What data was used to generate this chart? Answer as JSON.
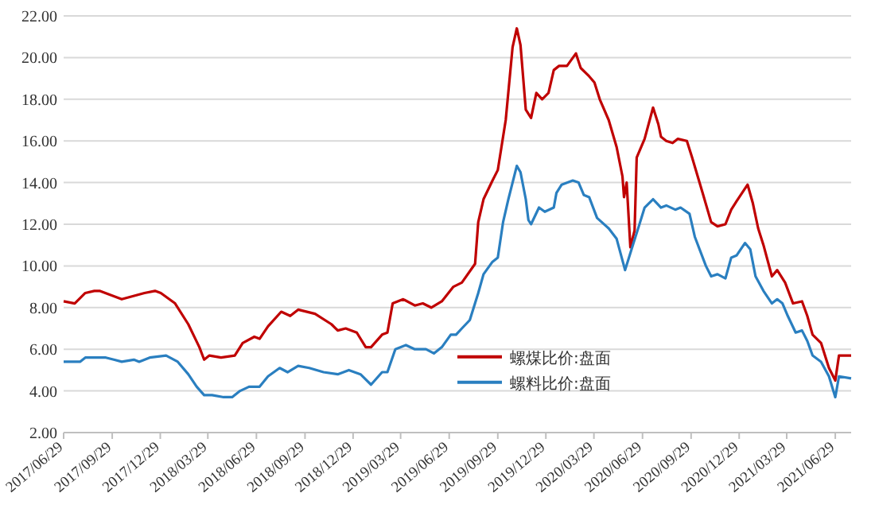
{
  "chart_data": {
    "type": "line",
    "xlim": [
      "2017-06-29",
      "2021-07-29"
    ],
    "ylim": [
      2,
      22
    ],
    "xticks": [
      {
        "value": "2017-06-29",
        "label": "2017/06/29"
      },
      {
        "value": "2017-09-29",
        "label": "2017/09/29"
      },
      {
        "value": "2017-12-29",
        "label": "2017/12/29"
      },
      {
        "value": "2018-03-29",
        "label": "2018/03/29"
      },
      {
        "value": "2018-06-29",
        "label": "2018/06/29"
      },
      {
        "value": "2018-09-29",
        "label": "2018/09/29"
      },
      {
        "value": "2018-12-29",
        "label": "2018/12/29"
      },
      {
        "value": "2019-03-29",
        "label": "2019/03/29"
      },
      {
        "value": "2019-06-29",
        "label": "2019/06/29"
      },
      {
        "value": "2019-09-29",
        "label": "2019/09/29"
      },
      {
        "value": "2019-12-29",
        "label": "2019/12/29"
      },
      {
        "value": "2020-03-29",
        "label": "2020/03/29"
      },
      {
        "value": "2020-06-29",
        "label": "2020/06/29"
      },
      {
        "value": "2020-09-29",
        "label": "2020/09/29"
      },
      {
        "value": "2020-12-29",
        "label": "2020/12/29"
      },
      {
        "value": "2021-03-29",
        "label": "2021/03/29"
      },
      {
        "value": "2021-06-29",
        "label": "2021/06/29"
      }
    ],
    "yticks": [
      {
        "value": 2,
        "label": "2.00"
      },
      {
        "value": 4,
        "label": "4.00"
      },
      {
        "value": 6,
        "label": "6.00"
      },
      {
        "value": 8,
        "label": "8.00"
      },
      {
        "value": 10,
        "label": "10.00"
      },
      {
        "value": 12,
        "label": "12.00"
      },
      {
        "value": 14,
        "label": "14.00"
      },
      {
        "value": 16,
        "label": "16.00"
      },
      {
        "value": 18,
        "label": "18.00"
      },
      {
        "value": 20,
        "label": "20.00"
      },
      {
        "value": 22,
        "label": "22.00"
      }
    ],
    "grid": "y",
    "legend": "bottom",
    "series": [
      {
        "name": "螺煤比价:盘面",
        "color": "#c00000",
        "x": [
          "2017-06-29",
          "2017-07-20",
          "2017-08-09",
          "2017-08-26",
          "2017-09-05",
          "2017-10-17",
          "2017-11-29",
          "2017-12-19",
          "2017-12-30",
          "2018-01-26",
          "2018-02-20",
          "2018-03-13",
          "2018-03-22",
          "2018-04-01",
          "2018-04-23",
          "2018-05-19",
          "2018-06-03",
          "2018-06-25",
          "2018-07-05",
          "2018-07-21",
          "2018-08-15",
          "2018-09-01",
          "2018-09-16",
          "2018-10-18",
          "2018-11-18",
          "2018-11-30",
          "2018-12-15",
          "2019-01-05",
          "2019-01-22",
          "2019-02-01",
          "2019-02-22",
          "2019-03-04",
          "2019-03-14",
          "2019-04-03",
          "2019-04-25",
          "2019-05-10",
          "2019-05-26",
          "2019-06-15",
          "2019-07-07",
          "2019-07-23",
          "2019-08-17",
          "2019-08-23",
          "2019-09-02",
          "2019-09-19",
          "2019-09-29",
          "2019-10-14",
          "2019-10-27",
          "2019-11-04",
          "2019-11-11",
          "2019-11-21",
          "2019-12-01",
          "2019-12-11",
          "2019-12-22",
          "2020-01-03",
          "2020-01-13",
          "2020-01-23",
          "2020-02-07",
          "2020-02-24",
          "2020-03-04",
          "2020-03-20",
          "2020-03-30",
          "2020-04-09",
          "2020-04-26",
          "2020-05-11",
          "2020-05-22",
          "2020-05-25",
          "2020-05-30",
          "2020-06-06",
          "2020-06-14",
          "2020-06-18",
          "2020-07-03",
          "2020-07-19",
          "2020-07-29",
          "2020-08-03",
          "2020-08-13",
          "2020-08-25",
          "2020-09-04",
          "2020-09-21",
          "2020-10-01",
          "2020-10-22",
          "2020-11-06",
          "2020-11-18",
          "2020-12-03",
          "2020-12-14",
          "2020-12-24",
          "2021-01-14",
          "2021-01-24",
          "2021-02-03",
          "2021-02-13",
          "2021-03-01",
          "2021-03-11",
          "2021-03-26",
          "2021-04-10",
          "2021-04-27",
          "2021-05-07",
          "2021-05-17",
          "2021-06-02",
          "2021-06-17",
          "2021-06-29",
          "2021-07-06",
          "2021-07-19",
          "2021-07-29"
        ],
        "values": [
          8.3,
          8.2,
          8.7,
          8.8,
          8.8,
          8.4,
          8.7,
          8.8,
          8.7,
          8.2,
          7.2,
          6.1,
          5.5,
          5.7,
          5.6,
          5.7,
          6.3,
          6.6,
          6.5,
          7.1,
          7.8,
          7.6,
          7.9,
          7.7,
          7.2,
          6.9,
          7.0,
          6.8,
          6.1,
          6.1,
          6.7,
          6.8,
          8.2,
          8.4,
          8.1,
          8.2,
          8.0,
          8.3,
          9.0,
          9.2,
          10.1,
          12.1,
          13.2,
          14.1,
          14.6,
          17.0,
          20.5,
          21.4,
          20.6,
          17.5,
          17.1,
          18.3,
          18.0,
          18.3,
          19.4,
          19.6,
          19.6,
          20.2,
          19.5,
          19.1,
          18.8,
          18.0,
          17.0,
          15.7,
          14.3,
          13.3,
          14.0,
          10.9,
          11.7,
          15.2,
          16.1,
          17.6,
          16.8,
          16.2,
          16.0,
          15.9,
          16.1,
          16.0,
          15.2,
          13.4,
          12.1,
          11.9,
          12.0,
          12.7,
          13.1,
          13.9,
          13.0,
          11.8,
          11.0,
          9.5,
          9.8,
          9.2,
          8.2,
          8.3,
          7.6,
          6.7,
          6.3,
          5.1,
          4.5,
          5.7,
          5.7,
          5.7
        ]
      },
      {
        "name": "螺料比价:盘面",
        "color": "#2a7fc0",
        "x": [
          "2017-06-29",
          "2017-07-30",
          "2017-08-09",
          "2017-08-26",
          "2017-09-17",
          "2017-10-02",
          "2017-10-17",
          "2017-11-09",
          "2017-11-19",
          "2017-12-09",
          "2018-01-09",
          "2018-01-31",
          "2018-02-20",
          "2018-03-08",
          "2018-03-22",
          "2018-04-06",
          "2018-04-28",
          "2018-05-14",
          "2018-05-29",
          "2018-06-15",
          "2018-07-05",
          "2018-07-21",
          "2018-08-12",
          "2018-08-27",
          "2018-09-16",
          "2018-10-07",
          "2018-11-03",
          "2018-11-30",
          "2018-12-21",
          "2019-01-12",
          "2019-02-01",
          "2019-02-22",
          "2019-03-04",
          "2019-03-19",
          "2019-04-08",
          "2019-04-25",
          "2019-05-16",
          "2019-05-31",
          "2019-06-15",
          "2019-07-02",
          "2019-07-12",
          "2019-07-23",
          "2019-08-07",
          "2019-08-23",
          "2019-09-02",
          "2019-09-19",
          "2019-09-29",
          "2019-10-09",
          "2019-10-19",
          "2019-11-04",
          "2019-11-11",
          "2019-11-21",
          "2019-11-26",
          "2019-12-01",
          "2019-12-16",
          "2019-12-27",
          "2020-01-13",
          "2020-01-18",
          "2020-01-28",
          "2020-02-18",
          "2020-02-29",
          "2020-03-10",
          "2020-03-20",
          "2020-04-04",
          "2020-04-26",
          "2020-05-11",
          "2020-05-27",
          "2020-06-12",
          "2020-06-22",
          "2020-07-03",
          "2020-07-19",
          "2020-08-03",
          "2020-08-13",
          "2020-08-30",
          "2020-09-09",
          "2020-09-26",
          "2020-10-06",
          "2020-10-27",
          "2020-11-06",
          "2020-11-18",
          "2020-12-03",
          "2020-12-14",
          "2020-12-24",
          "2021-01-09",
          "2021-01-19",
          "2021-01-29",
          "2021-02-13",
          "2021-03-01",
          "2021-03-11",
          "2021-03-21",
          "2021-03-31",
          "2021-04-15",
          "2021-04-27",
          "2021-05-07",
          "2021-05-17",
          "2021-06-02",
          "2021-06-17",
          "2021-06-29",
          "2021-07-06",
          "2021-07-29"
        ],
        "values": [
          5.4,
          5.4,
          5.6,
          5.6,
          5.6,
          5.5,
          5.4,
          5.5,
          5.4,
          5.6,
          5.7,
          5.4,
          4.8,
          4.2,
          3.8,
          3.8,
          3.7,
          3.7,
          4.0,
          4.2,
          4.2,
          4.7,
          5.1,
          4.9,
          5.2,
          5.1,
          4.9,
          4.8,
          5.0,
          4.8,
          4.3,
          4.9,
          4.9,
          6.0,
          6.2,
          6.0,
          6.0,
          5.8,
          6.1,
          6.7,
          6.7,
          7.0,
          7.4,
          8.7,
          9.6,
          10.2,
          10.4,
          12.1,
          13.2,
          14.8,
          14.5,
          13.2,
          12.2,
          12.0,
          12.8,
          12.6,
          12.8,
          13.5,
          13.9,
          14.1,
          14.0,
          13.4,
          13.3,
          12.3,
          11.8,
          11.3,
          9.8,
          11.1,
          11.9,
          12.8,
          13.2,
          12.8,
          12.9,
          12.7,
          12.8,
          12.5,
          11.4,
          10.0,
          9.5,
          9.6,
          9.4,
          10.4,
          10.5,
          11.1,
          10.8,
          9.5,
          8.8,
          8.2,
          8.4,
          8.2,
          7.6,
          6.8,
          6.9,
          6.4,
          5.7,
          5.4,
          4.7,
          3.7,
          4.7,
          4.6
        ]
      }
    ]
  }
}
